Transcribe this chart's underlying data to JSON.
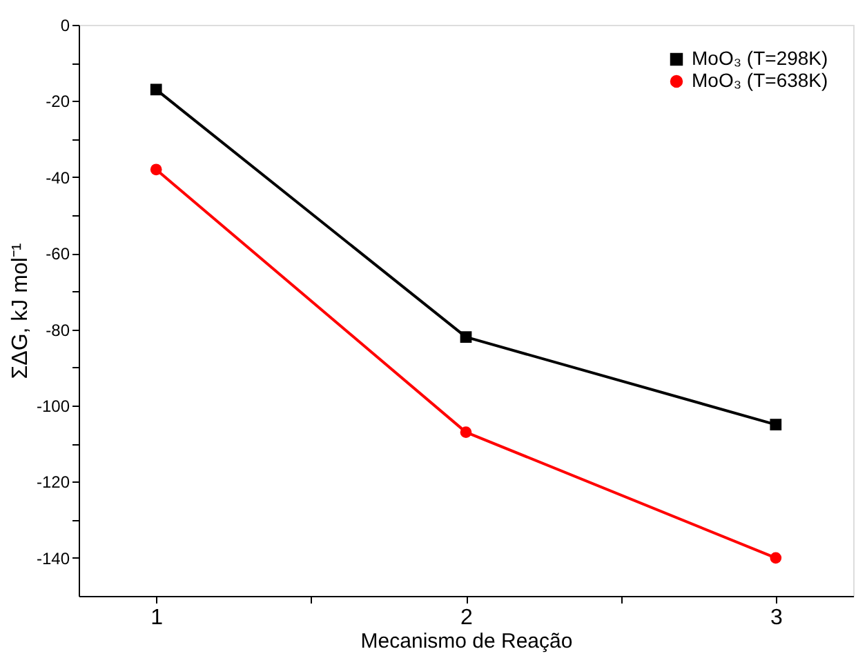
{
  "chart_data": {
    "type": "line",
    "xlabel": "Mecanismo de Reação",
    "ylabel": "ΣΔG, kJ mol⁻¹",
    "x": [
      1,
      2,
      3
    ],
    "series": [
      {
        "name": "MoO₃ (T=298K)",
        "color": "#000000",
        "marker": "square",
        "values": [
          -17,
          -82,
          -105
        ]
      },
      {
        "name": "MoO₃ (T=638K)",
        "color": "#ff0000",
        "marker": "circle",
        "values": [
          -38,
          -107,
          -140
        ]
      }
    ],
    "xlim": [
      0.75,
      3.25
    ],
    "xticks": [
      1,
      {
        "value": 1.5,
        "label": null
      },
      2,
      {
        "value": 2.5,
        "label": null
      },
      3
    ],
    "ylim": [
      -150,
      0
    ],
    "yticks": [
      -140,
      {
        "value": -130,
        "label": null
      },
      -120,
      {
        "value": -110,
        "label": null
      },
      -100,
      {
        "value": -90,
        "label": null
      },
      -80,
      {
        "value": -70,
        "label": null
      },
      -60,
      {
        "value": -50,
        "label": null
      },
      -40,
      {
        "value": -30,
        "label": null
      },
      -20,
      {
        "value": -10,
        "label": null
      },
      0
    ],
    "grid": false,
    "legend": "top right",
    "line_style": "solid"
  }
}
